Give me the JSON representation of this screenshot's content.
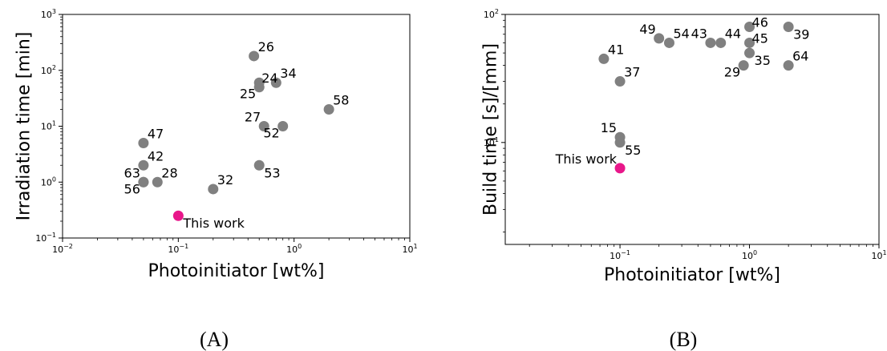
{
  "chart_data": [
    {
      "type": "scatter",
      "panel_label": "(A)",
      "xlabel": "Photoinitiator [wt%]",
      "ylabel": "Irradiation time [min]",
      "xscale": "log",
      "yscale": "log",
      "xlim": [
        0.01,
        10
      ],
      "ylim": [
        0.1,
        1000
      ],
      "xticks": [
        {
          "base": "10",
          "exp": "−2",
          "value": 0.01
        },
        {
          "base": "10",
          "exp": "−1",
          "value": 0.1
        },
        {
          "base": "10",
          "exp": "0",
          "value": 1
        },
        {
          "base": "10",
          "exp": "1",
          "value": 10
        }
      ],
      "yticks": [
        {
          "base": "10",
          "exp": "−1",
          "value": 0.1
        },
        {
          "base": "10",
          "exp": "0",
          "value": 1
        },
        {
          "base": "10",
          "exp": "1",
          "value": 10
        },
        {
          "base": "10",
          "exp": "2",
          "value": 100
        },
        {
          "base": "10",
          "exp": "3",
          "value": 1000
        }
      ],
      "colors": {
        "reference": "#808080",
        "this_work": "#e8178a"
      },
      "points": [
        {
          "label": "26",
          "x": 0.45,
          "y": 180,
          "label_pos": "upper-right"
        },
        {
          "label": "24",
          "x": 0.5,
          "y": 60,
          "label_pos": "right"
        },
        {
          "label": "34",
          "x": 0.7,
          "y": 60,
          "label_pos": "upper-right"
        },
        {
          "label": "25",
          "x": 0.5,
          "y": 50,
          "label_pos": "lower-left"
        },
        {
          "label": "58",
          "x": 2.0,
          "y": 20,
          "label_pos": "upper-right"
        },
        {
          "label": "27",
          "x": 0.55,
          "y": 10,
          "label_pos": "upper-left"
        },
        {
          "label": "52",
          "x": 0.8,
          "y": 10,
          "label_pos": "lower-left"
        },
        {
          "label": "47",
          "x": 0.05,
          "y": 5,
          "label_pos": "upper-right"
        },
        {
          "label": "42",
          "x": 0.05,
          "y": 2,
          "label_pos": "upper-right"
        },
        {
          "label": "53",
          "x": 0.5,
          "y": 2,
          "label_pos": "lower-right"
        },
        {
          "label": "63",
          "x": 0.05,
          "y": 1,
          "label_pos": "upper-left"
        },
        {
          "label": "28",
          "x": 0.066,
          "y": 1,
          "label_pos": "upper-right"
        },
        {
          "label": "56",
          "x": 0.05,
          "y": 1,
          "label_pos": "lower-left"
        },
        {
          "label": "32",
          "x": 0.2,
          "y": 0.75,
          "label_pos": "upper-right"
        },
        {
          "label": "This work",
          "x": 0.1,
          "y": 0.25,
          "label_pos": "lower-right",
          "highlight": true
        }
      ]
    },
    {
      "type": "scatter",
      "panel_label": "(B)",
      "xlabel": "Photoinitiator [wt%]",
      "ylabel": "Build time [s]/[mm]",
      "xscale": "log",
      "yscale": "log",
      "xlim": [
        0.013,
        10
      ],
      "ylim": [
        1.6,
        100
      ],
      "xticks": [
        {
          "base": "10",
          "exp": "−1",
          "value": 0.1
        },
        {
          "base": "10",
          "exp": "0",
          "value": 1
        },
        {
          "base": "10",
          "exp": "1",
          "value": 10
        }
      ],
      "yticks": [
        {
          "base": "10",
          "exp": "1",
          "value": 10
        },
        {
          "base": "10",
          "exp": "2",
          "value": 100
        }
      ],
      "colors": {
        "reference": "#808080",
        "this_work": "#e8178a"
      },
      "points": [
        {
          "label": "46",
          "x": 1.0,
          "y": 80,
          "label_pos": "right"
        },
        {
          "label": "39",
          "x": 2.0,
          "y": 80,
          "label_pos": "lower-right"
        },
        {
          "label": "49",
          "x": 0.2,
          "y": 65,
          "label_pos": "upper-left"
        },
        {
          "label": "54",
          "x": 0.24,
          "y": 60,
          "label_pos": "upper-right"
        },
        {
          "label": "43",
          "x": 0.5,
          "y": 60,
          "label_pos": "upper-left"
        },
        {
          "label": "44",
          "x": 0.6,
          "y": 60,
          "label_pos": "upper-right"
        },
        {
          "label": "45",
          "x": 1.0,
          "y": 60,
          "label_pos": "right"
        },
        {
          "label": "35",
          "x": 1.0,
          "y": 50,
          "label_pos": "lower-right"
        },
        {
          "label": "29",
          "x": 0.9,
          "y": 40,
          "label_pos": "lower-left"
        },
        {
          "label": "64",
          "x": 2.0,
          "y": 40,
          "label_pos": "upper-right"
        },
        {
          "label": "41",
          "x": 0.075,
          "y": 45,
          "label_pos": "upper-right"
        },
        {
          "label": "37",
          "x": 0.1,
          "y": 30,
          "label_pos": "upper-right"
        },
        {
          "label": "15",
          "x": 0.1,
          "y": 11,
          "label_pos": "upper-left"
        },
        {
          "label": "55",
          "x": 0.1,
          "y": 10,
          "label_pos": "lower-right"
        },
        {
          "label": "This work",
          "x": 0.1,
          "y": 6.3,
          "label_pos": "upper-left",
          "highlight": true
        }
      ]
    }
  ]
}
